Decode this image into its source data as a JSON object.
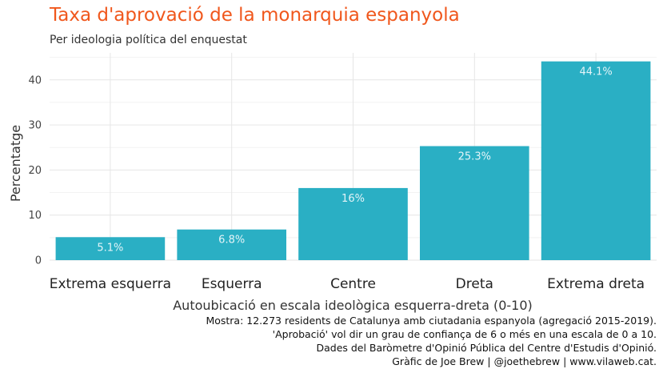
{
  "chart_data": {
    "type": "bar",
    "title": "Taxa d'aprovació de la monarquia espanyola",
    "subtitle": "Per ideologia política del enquestat",
    "xlabel": "Autoubicació en escala ideològica esquerra-dreta (0-10)",
    "ylabel": "Percentatge",
    "categories": [
      "Extrema esquerra",
      "Esquerra",
      "Centre",
      "Dreta",
      "Extrema dreta"
    ],
    "values": [
      5.1,
      6.8,
      16,
      25.3,
      44.1
    ],
    "value_labels": [
      "5.1%",
      "6.8%",
      "16%",
      "25.3%",
      "44.1%"
    ],
    "yticks": [
      0,
      10,
      20,
      30,
      40
    ],
    "ylim": [
      0,
      46
    ],
    "grid": true,
    "bar_color": "#2aafc4",
    "title_color": "#f0571c"
  },
  "caption": [
    "Mostra: 12.273 residents de Catalunya amb ciutadania espanyola (agregació 2015-2019).",
    "'Aprobació' vol dir un grau de confiança de 6 o més en una escala de 0 a 10.",
    "Dades del Baròmetre d'Opinió Pública del Centre d'Estudis d'Opinió.",
    "Gràfic de Joe Brew | @joethebrew | www.vilaweb.cat."
  ]
}
